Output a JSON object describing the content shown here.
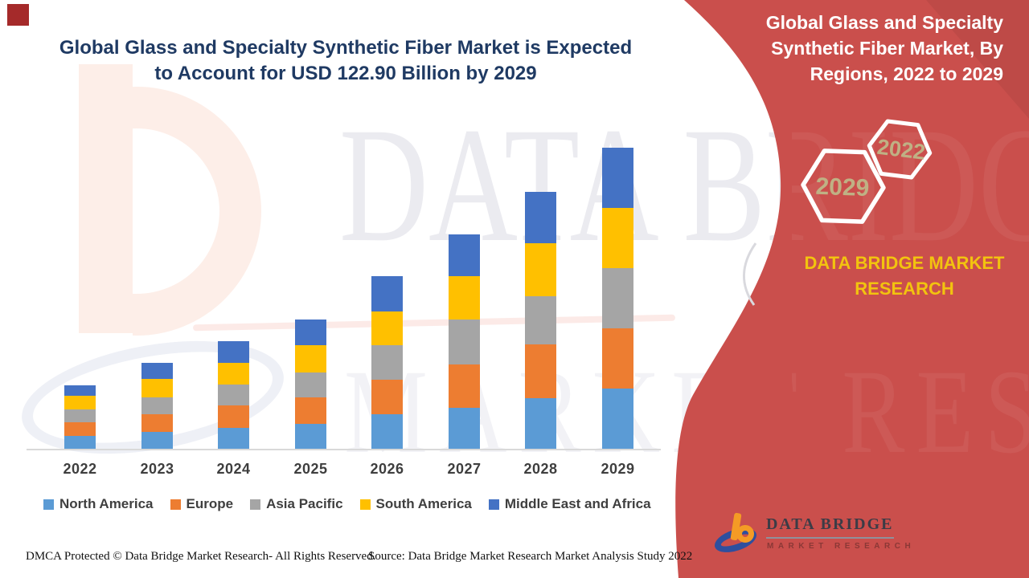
{
  "header": {
    "title_lines": [
      "Global Glass and Specialty Synthetic Fiber Market is Expected",
      "to Account for USD 122.90 Billion by 2029"
    ]
  },
  "chart_data": {
    "type": "bar",
    "stacked": true,
    "title": "Global Glass and Specialty Synthetic Fiber Market is Expected to Account for USD 122.90 Billion by 2029",
    "unit": "USD Billion",
    "categories": [
      "2022",
      "2023",
      "2024",
      "2025",
      "2026",
      "2027",
      "2028",
      "2029"
    ],
    "series": [
      {
        "name": "North America",
        "color": "#5b9bd5",
        "values": [
          5.1,
          6.9,
          8.4,
          10.0,
          14.2,
          16.8,
          20.6,
          24.5
        ]
      },
      {
        "name": "Europe",
        "color": "#ed7d31",
        "values": [
          5.7,
          7.2,
          9.3,
          10.7,
          14.0,
          17.7,
          22.0,
          24.5
        ]
      },
      {
        "name": "Asia Pacific",
        "color": "#a5a5a5",
        "values": [
          5.2,
          6.9,
          8.5,
          10.2,
          14.2,
          18.2,
          19.8,
          24.7
        ]
      },
      {
        "name": "South America",
        "color": "#ffc000",
        "values": [
          5.5,
          7.5,
          8.7,
          11.2,
          13.8,
          17.6,
          21.6,
          24.7
        ]
      },
      {
        "name": "Middle East and Africa",
        "color": "#4472c4",
        "values": [
          4.4,
          6.6,
          9.0,
          10.4,
          14.4,
          17.2,
          21.0,
          24.5
        ]
      }
    ],
    "totals_estimated": [
      25.9,
      35.1,
      43.9,
      52.5,
      70.6,
      87.5,
      104.9,
      122.9
    ],
    "ylim": [
      0,
      130
    ],
    "xlabel": "",
    "ylabel": "",
    "y_axis_visible": false,
    "grid": false,
    "legend_position": "bottom"
  },
  "right_panel": {
    "title_lines": [
      "Global Glass and Specialty",
      "Synthetic Fiber Market, By",
      "Regions, 2022 to 2029"
    ],
    "hexagon_back_label": "2022",
    "hexagon_front_label": "2029",
    "brand_text": "DATA BRIDGE MARKET RESEARCH"
  },
  "logo": {
    "name": "DATA BRIDGE",
    "tagline": "MARKET RESEARCH"
  },
  "watermark": {
    "line1": "DATA BRIDGE",
    "line2": "MARKET RESEARCH"
  },
  "footer": {
    "dmca": "DMCA Protected © Data Bridge Market Research- All Rights Reserved.",
    "source": "Source: Data Bridge Market Research Market Analysis Study 2022"
  },
  "colors": {
    "panel_red": "#ca4f4c",
    "panel_red_dark": "#c14340",
    "title_navy": "#1f3a63",
    "brand_yellow": "#f2c30f",
    "hexagon_year_text": "#bfb184",
    "axis_line": "#d9d9d9",
    "corner_square": "#a52a2a"
  }
}
